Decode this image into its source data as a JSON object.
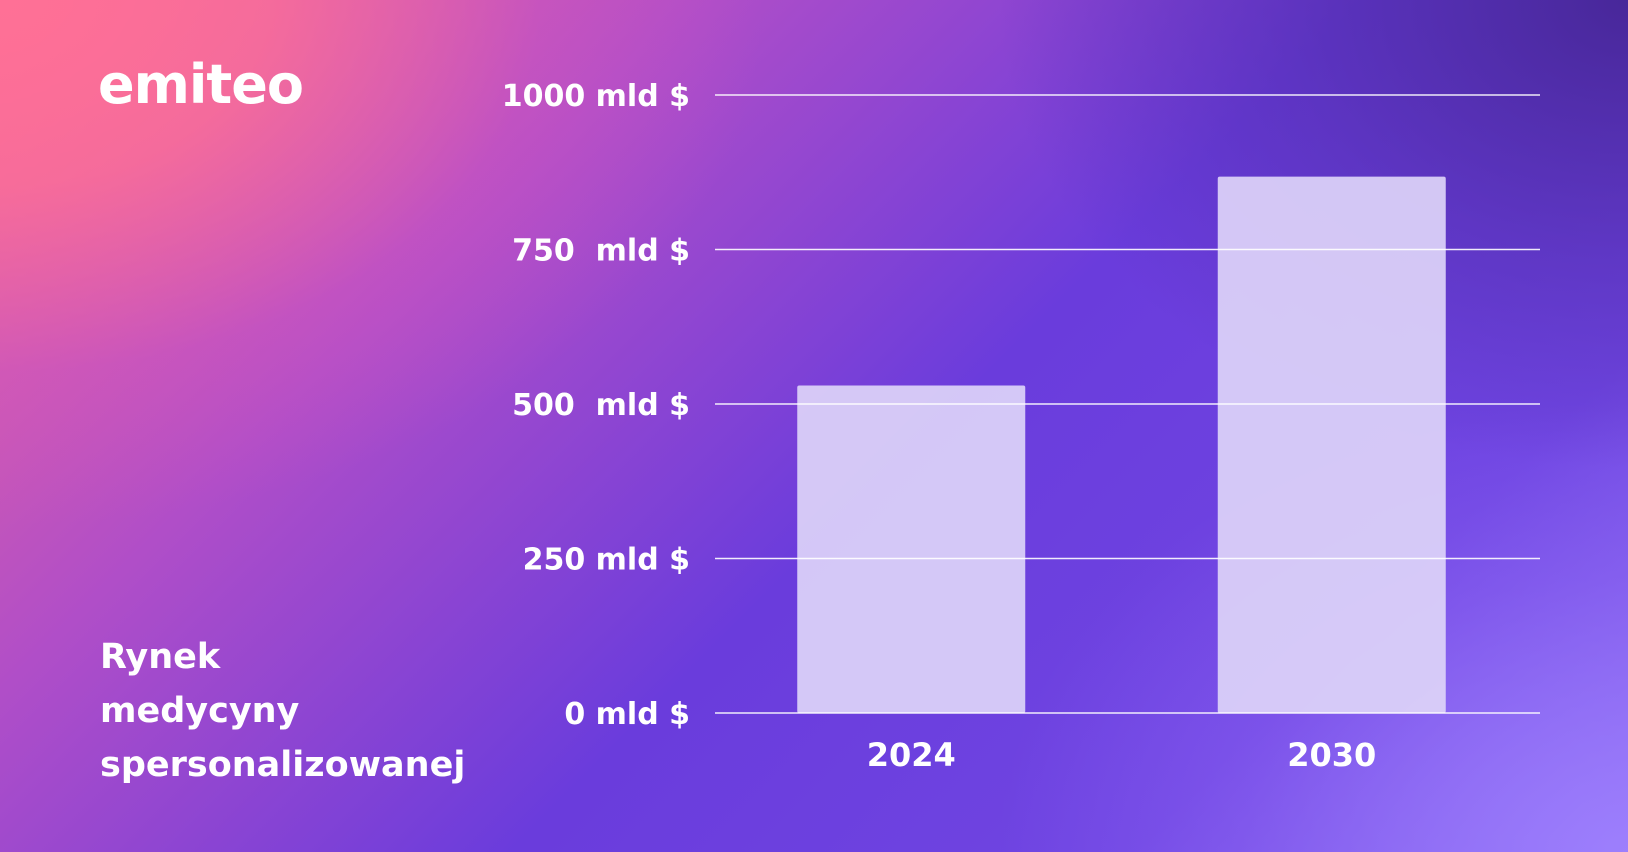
{
  "brand": {
    "logo_text": "emiteo"
  },
  "subtitle": {
    "lines": [
      "Rynek",
      "medycyny",
      "spersonalizowanej"
    ]
  },
  "colors": {
    "bar_fill": "#ddd4f8",
    "gridline": "#ffffff",
    "text": "#ffffff"
  },
  "chart_data": {
    "type": "bar",
    "categories": [
      "2024",
      "2030"
    ],
    "values": [
      530,
      868
    ],
    "ylim": [
      0,
      1000
    ],
    "yticks": [
      0,
      250,
      500,
      750,
      1000
    ],
    "ytick_labels": [
      "0 mld $",
      "250 mld $",
      "500  mld $",
      "750  mld $",
      "1000 mld $"
    ],
    "grid": true,
    "legend": "none"
  }
}
